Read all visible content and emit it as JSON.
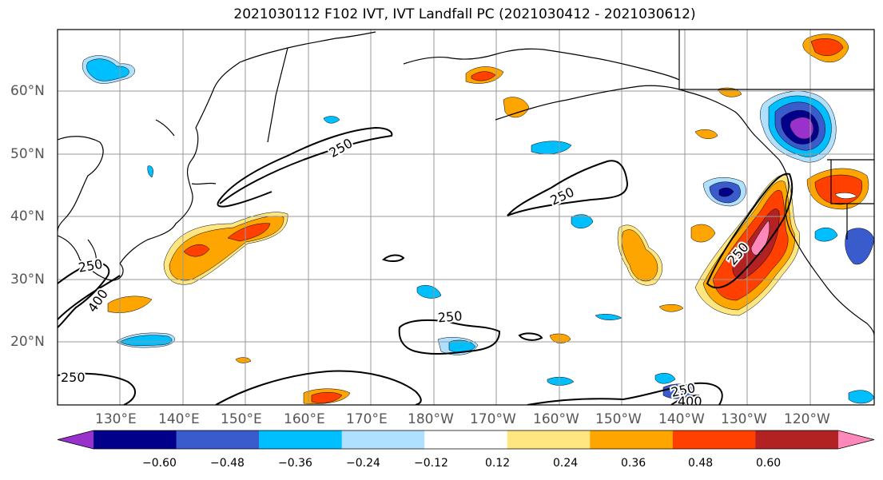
{
  "title": "2021030112 F102 IVT, IVT Landfall PC (2021030412 - 2021030612)",
  "lat_labels": [
    "60°N",
    "50°N",
    "40°N",
    "30°N",
    "20°N"
  ],
  "lon_labels": [
    "130°E",
    "140°E",
    "150°E",
    "160°E",
    "170°E",
    "180°W",
    "170°W",
    "160°W",
    "150°W",
    "140°W",
    "130°W",
    "120°W"
  ],
  "contour_labels": [
    "250",
    "250",
    "250",
    "250",
    "250",
    "250",
    "250",
    "400",
    "400"
  ],
  "colorbar": {
    "colors": [
      "#9932CC",
      "#00008B",
      "#3A5BCC",
      "#00BFFF",
      "#B0E0FF",
      "#FFFFFF",
      "#FFE680",
      "#FFA500",
      "#FF4000",
      "#B22222",
      "#FF88BB"
    ],
    "tick_labels": [
      "−0.60",
      "−0.48",
      "−0.36",
      "−0.24",
      "−0.12",
      "0.12",
      "0.24",
      "0.36",
      "0.48",
      "0.60"
    ]
  },
  "palette": {
    "purple": "#9932CC",
    "navy": "#00008B",
    "blue": "#3A5BCC",
    "sky": "#00BFFF",
    "pale": "#B0E0FF",
    "yellow": "#FFE680",
    "orange": "#FFA500",
    "red": "#FF4000",
    "darkred": "#B22222",
    "pink": "#FF88BB"
  }
}
